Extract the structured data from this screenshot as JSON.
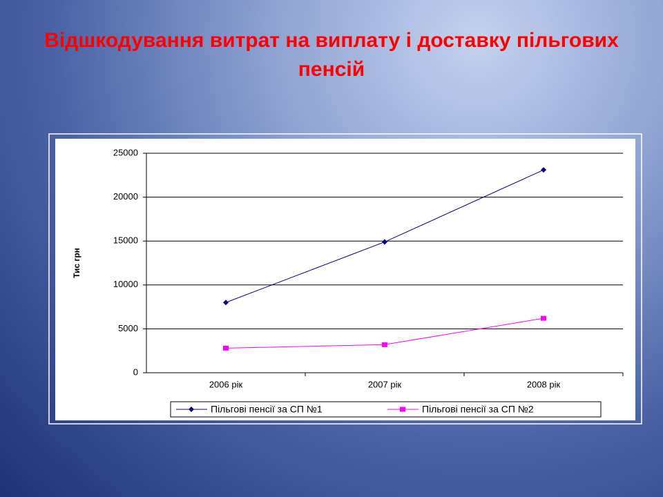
{
  "chart_data": {
    "type": "line",
    "title": "Відшкодування витрат на виплату і доставку пільгових пенсій",
    "y_label": "Тис грн",
    "categories": [
      "2006 рік",
      "2007 рік",
      "2008 рік"
    ],
    "series": [
      {
        "name": "Пільгові пенсії за СП №1",
        "color": "#000080",
        "marker": "diamond",
        "values": [
          8000,
          14900,
          23100
        ]
      },
      {
        "name": "Пільгові пенсії за СП №2",
        "color": "#ff00ff",
        "marker": "square",
        "values": [
          2800,
          3200,
          6200
        ]
      }
    ],
    "ylim": [
      0,
      25000
    ],
    "yticks": [
      0,
      5000,
      10000,
      15000,
      20000,
      25000
    ],
    "grid": true,
    "legend": "bottom"
  }
}
